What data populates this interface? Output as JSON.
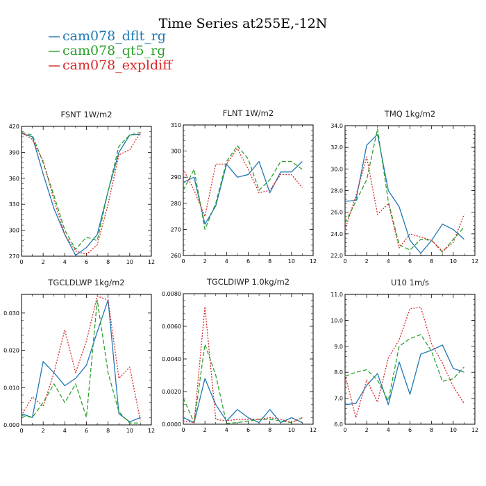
{
  "figure": {
    "title": "Time Series at255E,-12N"
  },
  "legend": [
    {
      "label": "cam078_dflt_rg",
      "color": "#1f77b4",
      "dash": ""
    },
    {
      "label": "cam078_qt5_rg",
      "color": "#2ca02c",
      "dash": "6,3"
    },
    {
      "label": "cam078_expldiff",
      "color": "#d62728",
      "dash": "2,2"
    }
  ],
  "chart_data": [
    {
      "type": "line",
      "title": "FSNT   1W/m2",
      "x": [
        0,
        1,
        2,
        3,
        4,
        5,
        6,
        7,
        8,
        9,
        10,
        11
      ],
      "xlim": [
        0,
        12
      ],
      "xticks": [
        0,
        2,
        4,
        6,
        8,
        10,
        12
      ],
      "ylim": [
        270,
        420
      ],
      "yticks": [
        270,
        300,
        330,
        360,
        390,
        420
      ],
      "ytick_labels": [
        "270",
        "300",
        "330",
        "360",
        "390",
        "420"
      ],
      "series": [
        {
          "name": "cam078_dflt_rg",
          "values": [
            412,
            408,
            365,
            325,
            295,
            271,
            280,
            295,
            345,
            390,
            410,
            411
          ]
        },
        {
          "name": "cam078_qt5_rg",
          "values": [
            413,
            410,
            378,
            340,
            300,
            278,
            292,
            288,
            345,
            397,
            410,
            413
          ]
        },
        {
          "name": "cam078_expldiff",
          "values": [
            413,
            405,
            380,
            335,
            295,
            276,
            272,
            283,
            330,
            387,
            393,
            413
          ]
        }
      ]
    },
    {
      "type": "line",
      "title": "FLNT   1W/m2",
      "x": [
        0,
        1,
        2,
        3,
        4,
        5,
        6,
        7,
        8,
        9,
        10,
        11
      ],
      "xlim": [
        0,
        12
      ],
      "xticks": [
        0,
        2,
        4,
        6,
        8,
        10,
        12
      ],
      "ylim": [
        260,
        310
      ],
      "yticks": [
        260,
        270,
        280,
        290,
        300,
        310
      ],
      "ytick_labels": [
        "260",
        "270",
        "280",
        "290",
        "300",
        "310"
      ],
      "series": [
        {
          "name": "cam078_dflt_rg",
          "values": [
            288,
            290,
            272,
            279,
            295,
            290,
            291,
            296,
            284,
            292,
            292,
            296
          ]
        },
        {
          "name": "cam078_qt5_rg",
          "values": [
            285,
            293,
            270,
            280,
            296,
            302,
            297,
            285,
            289,
            296,
            296,
            293
          ]
        },
        {
          "name": "cam078_expldiff",
          "values": [
            293,
            285,
            275,
            295,
            295,
            301,
            293,
            284,
            285,
            291,
            291,
            286
          ]
        }
      ]
    },
    {
      "type": "line",
      "title": "TMQ   1kg/m2",
      "x": [
        0,
        1,
        2,
        3,
        4,
        5,
        6,
        7,
        8,
        9,
        10,
        11
      ],
      "xlim": [
        0,
        12
      ],
      "xticks": [
        0,
        2,
        4,
        6,
        8,
        10,
        12
      ],
      "ylim": [
        22,
        34
      ],
      "yticks": [
        22,
        24,
        26,
        28,
        30,
        32,
        34
      ],
      "ytick_labels": [
        "22.0",
        "24.0",
        "26.0",
        "28.0",
        "30.0",
        "32.0",
        "34.0"
      ],
      "series": [
        {
          "name": "cam078_dflt_rg",
          "values": [
            27.0,
            27.1,
            32.2,
            33.2,
            28.0,
            26.5,
            23.4,
            22.2,
            23.4,
            24.9,
            24.4,
            23.5
          ]
        },
        {
          "name": "cam078_qt5_rg",
          "values": [
            25.0,
            27.0,
            29.0,
            33.7,
            27.0,
            23.0,
            22.5,
            23.5,
            23.4,
            22.3,
            23.5,
            24.6
          ]
        },
        {
          "name": "cam078_expldiff",
          "values": [
            24.4,
            27.5,
            31.1,
            25.8,
            26.8,
            22.7,
            24.0,
            23.7,
            23.4,
            22.4,
            23.2,
            25.8
          ]
        }
      ]
    },
    {
      "type": "line",
      "title": "TGCLDLWP   1kg/m2",
      "x": [
        0,
        1,
        2,
        3,
        4,
        5,
        6,
        7,
        8,
        9,
        10,
        11
      ],
      "xlim": [
        0,
        12
      ],
      "xticks": [
        0,
        2,
        4,
        6,
        8,
        10,
        12
      ],
      "ylim": [
        0,
        0.035
      ],
      "yticks": [
        0,
        0.01,
        0.02,
        0.03
      ],
      "ytick_labels": [
        "0.000",
        "0.010",
        "0.020",
        "0.030"
      ],
      "series": [
        {
          "name": "cam078_dflt_rg",
          "values": [
            0.003,
            0.002,
            0.017,
            0.014,
            0.0105,
            0.0125,
            0.016,
            0.025,
            0.0335,
            0.003,
            0.0008,
            0.002
          ]
        },
        {
          "name": "cam078_qt5_rg",
          "values": [
            0.0025,
            0.002,
            0.006,
            0.011,
            0.006,
            0.011,
            0.002,
            0.0335,
            0.014,
            0.0035,
            0.0005,
            0.0005
          ]
        },
        {
          "name": "cam078_expldiff",
          "values": [
            0.0025,
            0.0075,
            0.005,
            0.014,
            0.0255,
            0.014,
            0.0225,
            0.0345,
            0.0335,
            0.0125,
            0.0155,
            0.001
          ]
        }
      ]
    },
    {
      "type": "line",
      "title": "TGCLDIWP   1.0kg/m2",
      "x": [
        0,
        1,
        2,
        3,
        4,
        5,
        6,
        7,
        8,
        9,
        10,
        11
      ],
      "xlim": [
        0,
        12
      ],
      "xticks": [
        0,
        2,
        4,
        6,
        8,
        10,
        12
      ],
      "ylim": [
        0,
        0.008
      ],
      "yticks": [
        0,
        0.002,
        0.004,
        0.006,
        0.008
      ],
      "ytick_labels": [
        "0.0000",
        "0.0020",
        "0.0040",
        "0.0060",
        "0.0080"
      ],
      "series": [
        {
          "name": "cam078_dflt_rg",
          "values": [
            0.0004,
            0.0001,
            0.0028,
            0.0012,
            0.0002,
            0.0009,
            0.0004,
            0.0001,
            0.0009,
            0.0001,
            0.0004,
            0.0001
          ]
        },
        {
          "name": "cam078_qt5_rg",
          "values": [
            0.0016,
            0.0001,
            0.0049,
            0.003,
            5e-05,
            0.0001,
            0.0002,
            0.0003,
            0.0003,
            0.0002,
            0.0001,
            0.0004
          ]
        },
        {
          "name": "cam078_expldiff",
          "values": [
            0.0002,
            0.0001,
            0.0072,
            0.0003,
            0.0002,
            0.0003,
            0.0003,
            0.0003,
            0.0004,
            0.0003,
            0.0001,
            0.0004
          ]
        }
      ]
    },
    {
      "type": "line",
      "title": "U10   1m/s",
      "x": [
        0,
        1,
        2,
        3,
        4,
        5,
        6,
        7,
        8,
        9,
        10,
        11
      ],
      "xlim": [
        0,
        12
      ],
      "xticks": [
        0,
        2,
        4,
        6,
        8,
        10,
        12
      ],
      "ylim": [
        6,
        11
      ],
      "yticks": [
        6,
        7,
        8,
        9,
        10,
        11
      ],
      "ytick_labels": [
        "6.0",
        "7.0",
        "8.0",
        "9.0",
        "10.0",
        "11.0"
      ],
      "series": [
        {
          "name": "cam078_dflt_rg",
          "values": [
            6.75,
            6.8,
            7.5,
            7.95,
            6.75,
            8.4,
            7.15,
            8.7,
            8.85,
            9.05,
            8.15,
            8.0
          ]
        },
        {
          "name": "cam078_qt5_rg",
          "values": [
            7.85,
            8.0,
            8.1,
            7.7,
            6.9,
            9.0,
            9.3,
            9.45,
            8.8,
            7.65,
            7.75,
            8.2
          ]
        },
        {
          "name": "cam078_expldiff",
          "values": [
            7.9,
            6.25,
            7.7,
            6.85,
            8.55,
            9.25,
            10.45,
            10.5,
            9.1,
            8.35,
            7.45,
            6.8
          ]
        }
      ]
    }
  ]
}
